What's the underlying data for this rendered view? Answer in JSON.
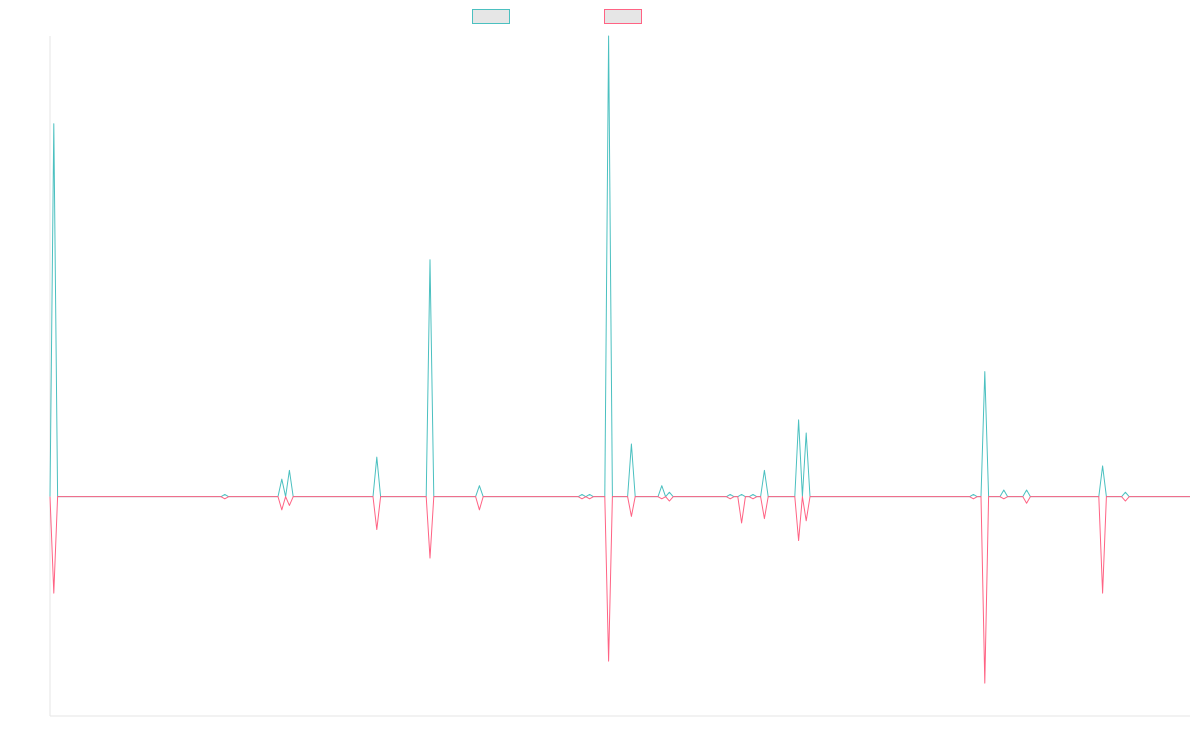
{
  "chart_data": {
    "type": "line",
    "title": "",
    "xlabel": "",
    "ylabel": "",
    "grid": false,
    "legend_position": "top",
    "x": [
      0,
      1,
      2,
      3,
      4,
      5,
      6,
      7,
      8,
      9,
      10,
      11,
      12,
      13,
      14,
      15,
      16,
      17,
      18,
      19,
      20,
      21,
      22,
      23,
      24,
      25,
      26,
      27,
      28,
      29,
      30,
      31,
      32,
      33,
      34,
      35,
      36,
      37,
      38,
      39,
      40,
      41,
      42,
      43,
      44,
      45,
      46,
      47,
      48,
      49,
      50,
      51,
      52,
      53,
      54,
      55,
      56,
      57,
      58,
      59,
      60,
      61,
      62,
      63,
      64,
      65,
      66,
      67,
      68,
      69,
      70,
      71,
      72,
      73,
      74,
      75,
      76,
      77,
      78,
      79,
      80,
      81,
      82,
      83,
      84,
      85,
      86,
      87,
      88,
      89,
      90,
      91,
      92,
      93,
      94,
      95,
      96,
      97,
      98,
      99,
      100,
      101,
      102,
      103,
      104,
      105,
      106,
      107,
      108,
      109,
      110,
      111,
      112,
      113,
      114,
      115,
      116,
      117,
      118,
      119,
      120,
      121,
      122,
      123,
      124,
      125,
      126,
      127,
      128,
      129,
      130,
      131,
      132,
      133,
      134,
      135,
      136,
      137,
      138,
      139,
      140,
      141,
      142,
      143,
      144,
      145,
      146,
      147,
      148,
      149,
      150,
      151,
      152,
      153,
      154,
      155,
      156,
      157,
      158,
      159,
      160,
      161,
      162,
      163,
      164,
      165,
      166,
      167,
      168,
      169,
      170,
      171,
      172,
      173,
      174,
      175,
      176,
      177,
      178,
      179,
      180,
      181,
      182,
      183,
      184,
      185,
      186,
      187,
      188,
      189,
      190,
      191,
      192,
      193,
      194,
      195,
      196,
      197,
      198,
      199,
      200,
      201,
      202,
      203,
      204,
      205,
      206,
      207,
      208,
      209,
      210,
      211,
      212,
      213,
      214,
      215,
      216,
      217,
      218,
      219,
      220,
      221,
      222,
      223,
      224,
      225,
      226,
      227,
      228,
      229,
      230,
      231,
      232,
      233,
      234,
      235,
      236,
      237,
      238,
      239,
      240,
      241,
      242,
      243,
      244,
      245,
      246,
      247,
      248,
      249,
      250,
      251,
      252,
      253,
      254,
      255,
      256,
      257,
      258,
      259,
      260,
      261,
      262,
      263,
      264,
      265,
      266,
      267,
      268,
      269,
      270,
      271,
      272,
      273,
      274,
      275,
      276,
      277,
      278,
      279,
      280,
      281,
      282,
      283,
      284,
      285,
      286,
      287,
      288,
      289,
      290,
      291,
      292,
      293,
      294,
      295,
      296,
      297,
      298,
      299,
      300
    ],
    "ylim": [
      -100,
      210
    ],
    "spikes": [
      {
        "x": 1,
        "up": 170,
        "down": -44
      },
      {
        "x": 46,
        "up": 1,
        "down": -1
      },
      {
        "x": 61,
        "up": 8,
        "down": -6
      },
      {
        "x": 63,
        "up": 12,
        "down": -4
      },
      {
        "x": 86,
        "up": 18,
        "down": -15
      },
      {
        "x": 100,
        "up": 108,
        "down": -28
      },
      {
        "x": 113,
        "up": 5,
        "down": -6
      },
      {
        "x": 140,
        "up": 1,
        "down": -1
      },
      {
        "x": 142,
        "up": 1,
        "down": -1
      },
      {
        "x": 147,
        "up": 210,
        "down": -75
      },
      {
        "x": 153,
        "up": 24,
        "down": -9
      },
      {
        "x": 161,
        "up": 5,
        "down": -1
      },
      {
        "x": 163,
        "up": 2,
        "down": -2
      },
      {
        "x": 179,
        "up": 1,
        "down": -1
      },
      {
        "x": 182,
        "up": 1,
        "down": -12
      },
      {
        "x": 185,
        "up": 1,
        "down": -1
      },
      {
        "x": 188,
        "up": 12,
        "down": -10
      },
      {
        "x": 197,
        "up": 35,
        "down": -20
      },
      {
        "x": 199,
        "up": 29,
        "down": -11
      },
      {
        "x": 243,
        "up": 1,
        "down": -1
      },
      {
        "x": 246,
        "up": 57,
        "down": -85
      },
      {
        "x": 251,
        "up": 3,
        "down": -1
      },
      {
        "x": 257,
        "up": 3,
        "down": -3
      },
      {
        "x": 277,
        "up": 14,
        "down": -44
      },
      {
        "x": 283,
        "up": 2,
        "down": -2
      }
    ],
    "series": [
      {
        "color": "#4bc0c0",
        "kind": "up"
      },
      {
        "color": "#ff6384",
        "kind": "down"
      }
    ]
  }
}
